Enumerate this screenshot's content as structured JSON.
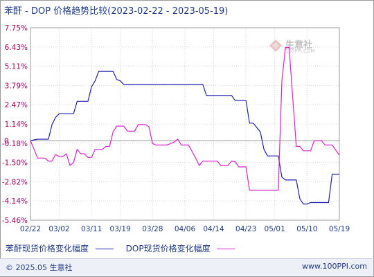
{
  "title": "苯酐 - DOP 价格趋势比较(2023-02-22 - 2023-05-19)",
  "watermark": {
    "text": "生意社",
    "url": "100PPI.COM"
  },
  "footer": {
    "copyright": "© 2025.05 生意社",
    "url": "www.100PPI.com"
  },
  "colors": {
    "series1": "#1f1fb4",
    "series2": "#e020d0",
    "axis_text": "#b0005a",
    "label_text": "#1f3a8a"
  },
  "chart_data": {
    "type": "line",
    "title": "苯酐 - DOP 价格趋势比较(2023-02-22 - 2023-05-19)",
    "xlabel": "",
    "ylabel": "",
    "x_ticks": [
      "02/22",
      "03/02",
      "03/11",
      "03/19",
      "03/28",
      "04/06",
      "04/14",
      "04/23",
      "05/01",
      "05/10",
      "05/19"
    ],
    "y_ticks": [
      "7.75%",
      "6.43%",
      "5.11%",
      "3.79%",
      "2.47%",
      "1.14%",
      "-0.18%",
      "-1.50%",
      "-2.82%",
      "-4.14%",
      "-5.46%"
    ],
    "y_tick_values": [
      7.75,
      6.43,
      5.11,
      3.79,
      2.47,
      1.14,
      -0.18,
      -1.5,
      -2.82,
      -4.14,
      -5.46
    ],
    "zero_label": "0",
    "ylim": [
      -5.46,
      7.75
    ],
    "grid": true,
    "legend_position": "bottom",
    "series": [
      {
        "name": "苯酐现货价格变化幅度",
        "color": "#1f1fb4",
        "points": [
          [
            "02/22",
            0.0
          ],
          [
            "02/24",
            0.1
          ],
          [
            "02/27",
            0.1
          ],
          [
            "02/28",
            1.1
          ],
          [
            "03/01",
            1.6
          ],
          [
            "03/02",
            1.85
          ],
          [
            "03/06",
            1.85
          ],
          [
            "03/07",
            2.7
          ],
          [
            "03/10",
            2.7
          ],
          [
            "03/11",
            3.7
          ],
          [
            "03/12",
            4.1
          ],
          [
            "03/13",
            4.75
          ],
          [
            "03/17",
            4.75
          ],
          [
            "03/18",
            4.2
          ],
          [
            "03/19",
            4.1
          ],
          [
            "03/20",
            3.85
          ],
          [
            "03/31",
            3.85
          ],
          [
            "04/01",
            3.85
          ],
          [
            "04/11",
            3.85
          ],
          [
            "04/12",
            3.1
          ],
          [
            "04/19",
            3.1
          ],
          [
            "04/20",
            2.75
          ],
          [
            "04/23",
            2.75
          ],
          [
            "04/24",
            1.2
          ],
          [
            "04/25",
            1.2
          ],
          [
            "04/27",
            0.6
          ],
          [
            "04/28",
            -0.6
          ],
          [
            "04/29",
            -1.05
          ],
          [
            "05/02",
            -1.05
          ],
          [
            "05/03",
            -2.5
          ],
          [
            "05/04",
            -2.7
          ],
          [
            "05/07",
            -2.7
          ],
          [
            "05/08",
            -4.0
          ],
          [
            "05/09",
            -4.35
          ],
          [
            "05/10",
            -4.35
          ],
          [
            "05/11",
            -4.25
          ],
          [
            "05/14",
            -4.25
          ],
          [
            "05/16",
            -4.25
          ],
          [
            "05/17",
            -2.3
          ],
          [
            "05/19",
            -2.3
          ]
        ]
      },
      {
        "name": "DOP现货价格变化幅度",
        "color": "#e020d0",
        "points": [
          [
            "02/22",
            0.0
          ],
          [
            "02/23",
            -0.6
          ],
          [
            "02/24",
            -1.2
          ],
          [
            "02/26",
            -1.2
          ],
          [
            "02/27",
            -1.4
          ],
          [
            "02/28",
            -1.4
          ],
          [
            "03/01",
            -0.95
          ],
          [
            "03/02",
            -1.1
          ],
          [
            "03/03",
            -1.1
          ],
          [
            "03/04",
            -0.9
          ],
          [
            "03/05",
            -1.7
          ],
          [
            "03/06",
            -1.5
          ],
          [
            "03/07",
            -0.6
          ],
          [
            "03/08",
            -0.9
          ],
          [
            "03/09",
            -0.9
          ],
          [
            "03/10",
            -1.15
          ],
          [
            "03/11",
            -1.15
          ],
          [
            "03/12",
            -0.6
          ],
          [
            "03/14",
            -0.6
          ],
          [
            "03/15",
            -0.4
          ],
          [
            "03/16",
            -0.4
          ],
          [
            "03/17",
            0.6
          ],
          [
            "03/18",
            1.0
          ],
          [
            "03/20",
            1.0
          ],
          [
            "03/21",
            0.65
          ],
          [
            "03/23",
            0.65
          ],
          [
            "03/24",
            1.1
          ],
          [
            "03/26",
            1.1
          ],
          [
            "03/27",
            0.95
          ],
          [
            "03/28",
            -0.2
          ],
          [
            "03/29",
            -0.3
          ],
          [
            "04/01",
            -0.3
          ],
          [
            "04/03",
            -0.1
          ],
          [
            "04/04",
            0.1
          ],
          [
            "04/05",
            -0.3
          ],
          [
            "04/07",
            -0.3
          ],
          [
            "04/09",
            -1.2
          ],
          [
            "04/10",
            -1.7
          ],
          [
            "04/11",
            -1.4
          ],
          [
            "04/15",
            -1.4
          ],
          [
            "04/16",
            -1.7
          ],
          [
            "04/18",
            -1.7
          ],
          [
            "04/19",
            -1.4
          ],
          [
            "04/20",
            -1.45
          ],
          [
            "04/21",
            -1.8
          ],
          [
            "04/23",
            -1.8
          ],
          [
            "04/24",
            -3.4
          ],
          [
            "04/26",
            -3.4
          ],
          [
            "05/01",
            -3.4
          ],
          [
            "05/02",
            -3.4
          ],
          [
            "05/03",
            4.1
          ],
          [
            "05/04",
            6.4
          ],
          [
            "05/05",
            6.4
          ],
          [
            "05/06",
            3.0
          ],
          [
            "05/07",
            -0.4
          ],
          [
            "05/08",
            -0.4
          ],
          [
            "05/09",
            -0.7
          ],
          [
            "05/11",
            -0.7
          ],
          [
            "05/12",
            0.0
          ],
          [
            "05/14",
            0.0
          ],
          [
            "05/15",
            -0.3
          ],
          [
            "05/17",
            -0.3
          ],
          [
            "05/19",
            -1.0
          ]
        ]
      }
    ]
  }
}
